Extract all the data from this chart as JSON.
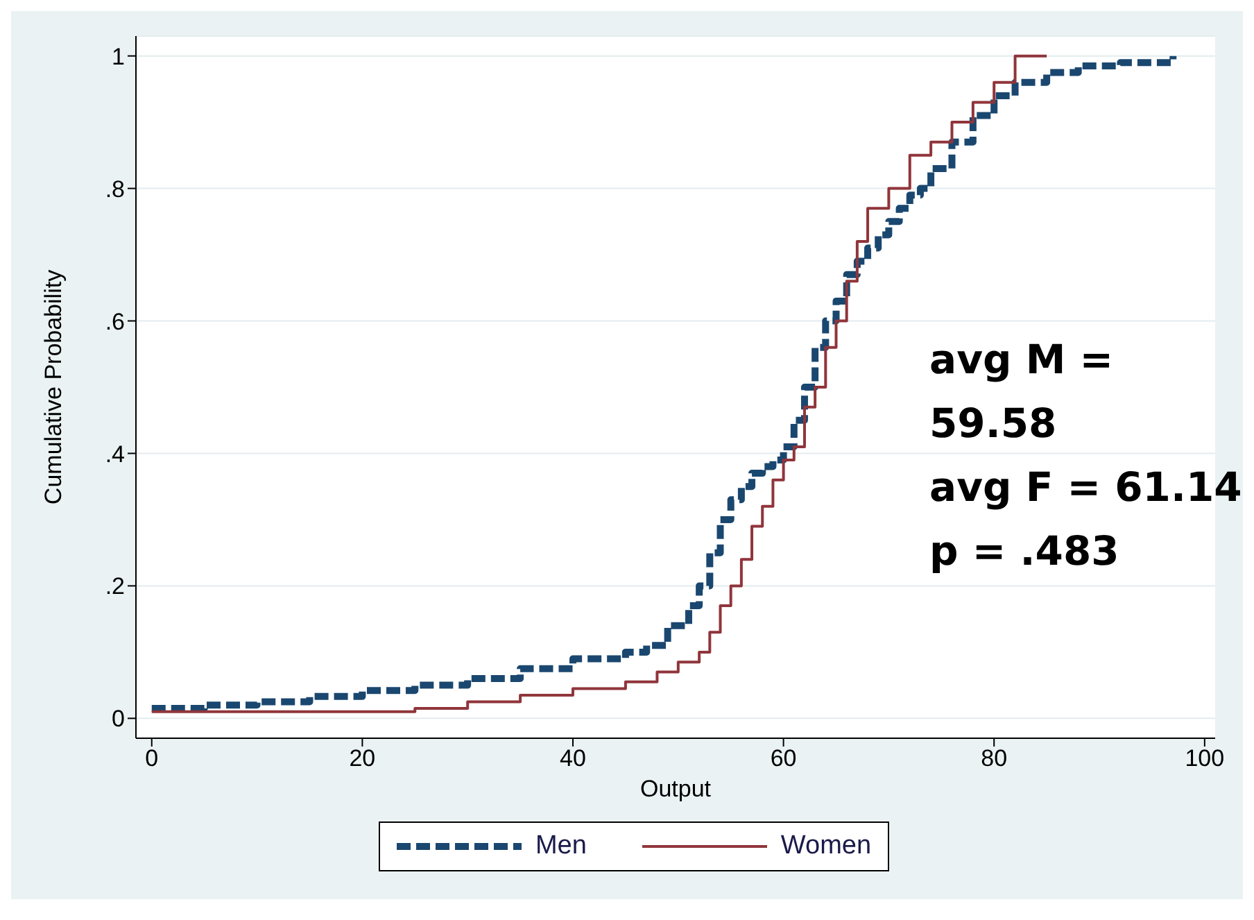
{
  "chart_data": {
    "type": "step",
    "xlabel": "Output",
    "ylabel": "Cumulative Probability",
    "xlim": [
      -1.5,
      101
    ],
    "xticks": [
      0,
      20,
      40,
      60,
      80,
      100
    ],
    "ylim": [
      -0.03,
      1.03
    ],
    "yticks": [
      {
        "value": 0,
        "label": "0"
      },
      {
        "value": 0.2,
        "label": ".2"
      },
      {
        "value": 0.4,
        "label": ".4"
      },
      {
        "value": 0.6,
        "label": ".6"
      },
      {
        "value": 0.8,
        "label": ".8"
      },
      {
        "value": 1,
        "label": "1"
      }
    ],
    "grid": "y",
    "legend": "bottom",
    "marker": "none",
    "annotations": [
      "avg M = 59.58",
      "avg F = 61.14",
      "p = .483"
    ],
    "series": [
      {
        "name": "Men",
        "color": "#1a476f",
        "line_style": "dashed",
        "x": [
          0,
          5,
          10,
          15,
          20,
          25,
          30,
          35,
          40,
          45,
          47,
          49,
          51,
          52,
          53,
          54,
          55,
          56,
          57,
          58,
          59,
          60,
          61,
          62,
          63,
          64,
          65,
          66,
          67,
          68,
          69,
          70,
          71,
          72,
          73,
          74,
          76,
          78,
          80,
          82,
          85,
          88,
          92,
          97
        ],
        "values": [
          0.015,
          0.02,
          0.025,
          0.033,
          0.042,
          0.05,
          0.06,
          0.075,
          0.09,
          0.1,
          0.11,
          0.14,
          0.17,
          0.2,
          0.25,
          0.3,
          0.33,
          0.35,
          0.37,
          0.38,
          0.39,
          0.41,
          0.45,
          0.5,
          0.56,
          0.6,
          0.63,
          0.67,
          0.69,
          0.71,
          0.73,
          0.75,
          0.77,
          0.79,
          0.8,
          0.83,
          0.87,
          0.91,
          0.94,
          0.96,
          0.975,
          0.985,
          0.99,
          1
        ]
      },
      {
        "name": "Women",
        "color": "#90353b",
        "line_style": "solid",
        "x": [
          0,
          25,
          30,
          35,
          40,
          45,
          48,
          50,
          52,
          53,
          54,
          55,
          56,
          57,
          58,
          59,
          60,
          61,
          62,
          63,
          64,
          65,
          66,
          67,
          68,
          70,
          72,
          74,
          76,
          78,
          80,
          82,
          85
        ],
        "values": [
          0.01,
          0.015,
          0.025,
          0.035,
          0.045,
          0.055,
          0.07,
          0.085,
          0.1,
          0.13,
          0.17,
          0.2,
          0.24,
          0.29,
          0.32,
          0.36,
          0.39,
          0.41,
          0.47,
          0.5,
          0.56,
          0.6,
          0.66,
          0.72,
          0.77,
          0.8,
          0.85,
          0.87,
          0.9,
          0.93,
          0.96,
          1,
          1
        ]
      }
    ]
  }
}
